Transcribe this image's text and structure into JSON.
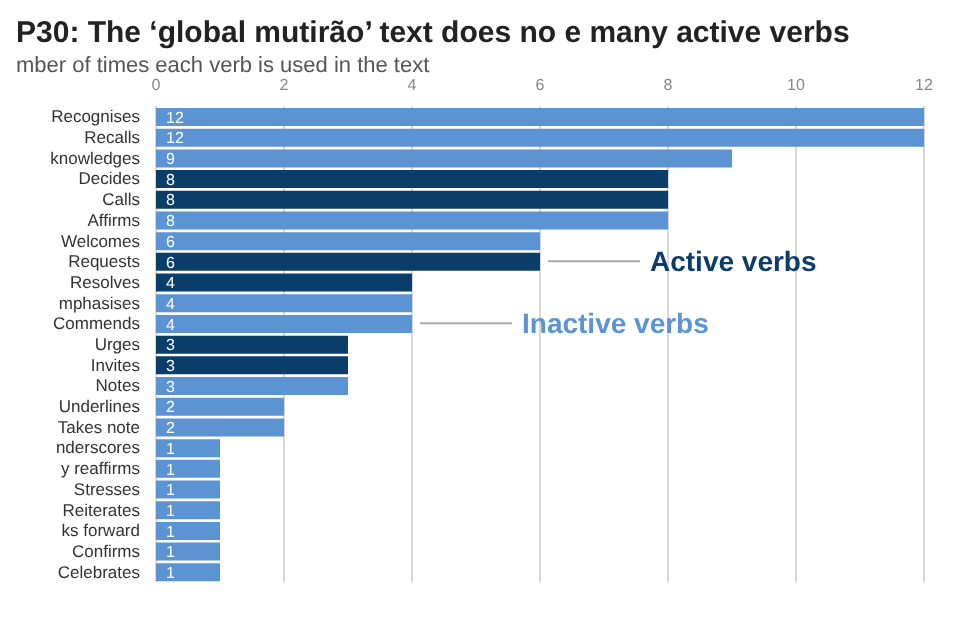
{
  "chart_data": {
    "type": "bar",
    "orientation": "horizontal",
    "title": "P30: The ‘global mutirão’ text does no e many active verbs",
    "subtitle": "mber of times each verb is used in the text",
    "categories": [
      "Recognises",
      "Recalls",
      "knowledges",
      "Decides",
      "Calls",
      "Affirms",
      "Welcomes",
      "Requests",
      "Resolves",
      "mphasises",
      "Commends",
      "Urges",
      "Invites",
      "Notes",
      "Underlines",
      "Takes note",
      "nderscores",
      "y reaffirms",
      "Stresses",
      "Reiterates",
      "ks forward",
      "Confirms",
      "Celebrates"
    ],
    "values": [
      12,
      12,
      9,
      8,
      8,
      8,
      6,
      6,
      4,
      4,
      4,
      3,
      3,
      3,
      2,
      2,
      1,
      1,
      1,
      1,
      1,
      1,
      1
    ],
    "colors": [
      "#5b93d3",
      "#5b93d3",
      "#5b93d3",
      "#0b3d6b",
      "#0b3d6b",
      "#5b93d3",
      "#5b93d3",
      "#0b3d6b",
      "#0b3d6b",
      "#5b93d3",
      "#5b93d3",
      "#0b3d6b",
      "#0b3d6b",
      "#5b93d3",
      "#5b93d3",
      "#5b93d3",
      "#5b93d3",
      "#5b93d3",
      "#5b93d3",
      "#5b93d3",
      "#5b93d3",
      "#5b93d3",
      "#5b93d3"
    ],
    "xlim": [
      0,
      12
    ],
    "xticks": [
      0,
      2,
      4,
      6,
      8,
      10,
      12
    ],
    "grid": "x",
    "data_labels": true,
    "annotations": [
      {
        "text": "Active verbs",
        "x": 6,
        "y": "Requests"
      },
      {
        "text": "Inactive verbs",
        "x": 4,
        "y": "Commends"
      }
    ]
  }
}
